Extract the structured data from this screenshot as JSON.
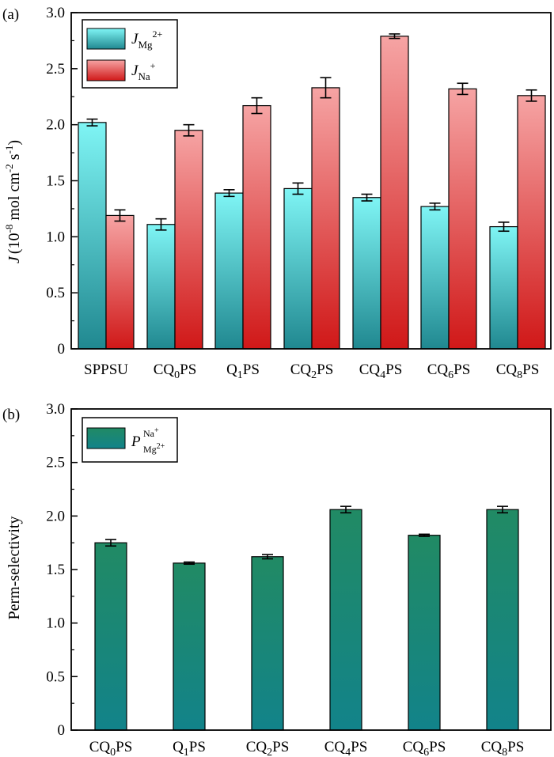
{
  "chart_data": [
    {
      "type": "bar",
      "panel_label": "(a)",
      "title": "",
      "xlabel": "",
      "ylabel": {
        "main": "J",
        "open": "(10",
        "exp1": "-8",
        "mid": " mol cm",
        "exp2": "-2",
        "mid2": " s",
        "exp3": "-1",
        "close": ")"
      },
      "ylim": [
        0,
        3.0
      ],
      "yticks": [
        0,
        0.5,
        1.0,
        1.5,
        2.0,
        2.5,
        3.0
      ],
      "ytick_labels": [
        "0",
        "0.5",
        "1.0",
        "1.5",
        "2.0",
        "2.5",
        "3.0"
      ],
      "categories": [
        {
          "base": "SPPSU",
          "sub": "",
          "tail": ""
        },
        {
          "base": "CQ",
          "sub": "0",
          "tail": "PS"
        },
        {
          "base": "Q",
          "sub": "1",
          "tail": "PS"
        },
        {
          "base": "CQ",
          "sub": "2",
          "tail": "PS"
        },
        {
          "base": "CQ",
          "sub": "4",
          "tail": "PS"
        },
        {
          "base": "CQ",
          "sub": "6",
          "tail": "PS"
        },
        {
          "base": "CQ",
          "sub": "8",
          "tail": "PS"
        }
      ],
      "series": [
        {
          "name": {
            "main": "J",
            "sub": "Mg",
            "sup": "2+"
          },
          "values": [
            2.02,
            1.11,
            1.39,
            1.43,
            1.35,
            1.27,
            1.09
          ],
          "errors": [
            0.03,
            0.05,
            0.03,
            0.05,
            0.03,
            0.03,
            0.04
          ],
          "color_top": "#7ff5f5",
          "color_bottom": "#208890"
        },
        {
          "name": {
            "main": "J",
            "sub": "Na",
            "sup": "+"
          },
          "values": [
            1.19,
            1.95,
            2.17,
            2.33,
            2.79,
            2.32,
            2.26
          ],
          "errors": [
            0.05,
            0.05,
            0.07,
            0.09,
            0.02,
            0.05,
            0.05
          ],
          "color_top": "#f6a4a4",
          "color_bottom": "#d01818"
        }
      ],
      "legend_position": "top-left"
    },
    {
      "type": "bar",
      "panel_label": "(b)",
      "title": "",
      "xlabel": "",
      "ylabel": "Perm-selectivity",
      "ylim": [
        0,
        3.0
      ],
      "yticks": [
        0,
        0.5,
        1.0,
        1.5,
        2.0,
        2.5,
        3.0
      ],
      "ytick_labels": [
        "0",
        "0.5",
        "1.0",
        "1.5",
        "2.0",
        "2.5",
        "3.0"
      ],
      "categories": [
        {
          "base": "CQ",
          "sub": "0",
          "tail": "PS"
        },
        {
          "base": "Q",
          "sub": "1",
          "tail": "PS"
        },
        {
          "base": "CQ",
          "sub": "2",
          "tail": "PS"
        },
        {
          "base": "CQ",
          "sub": "4",
          "tail": "PS"
        },
        {
          "base": "CQ",
          "sub": "6",
          "tail": "PS"
        },
        {
          "base": "CQ",
          "sub": "8",
          "tail": "PS"
        }
      ],
      "series": [
        {
          "name": {
            "main": "P",
            "sup": "Na",
            "supsup": "+",
            "sub": "Mg",
            "subsup": "2+"
          },
          "values": [
            1.75,
            1.56,
            1.62,
            2.06,
            1.82,
            2.06
          ],
          "errors": [
            0.03,
            0.01,
            0.02,
            0.03,
            0.01,
            0.03
          ],
          "color_top": "#218a64",
          "color_bottom": "#12838a"
        }
      ],
      "legend_position": "top-left"
    }
  ]
}
